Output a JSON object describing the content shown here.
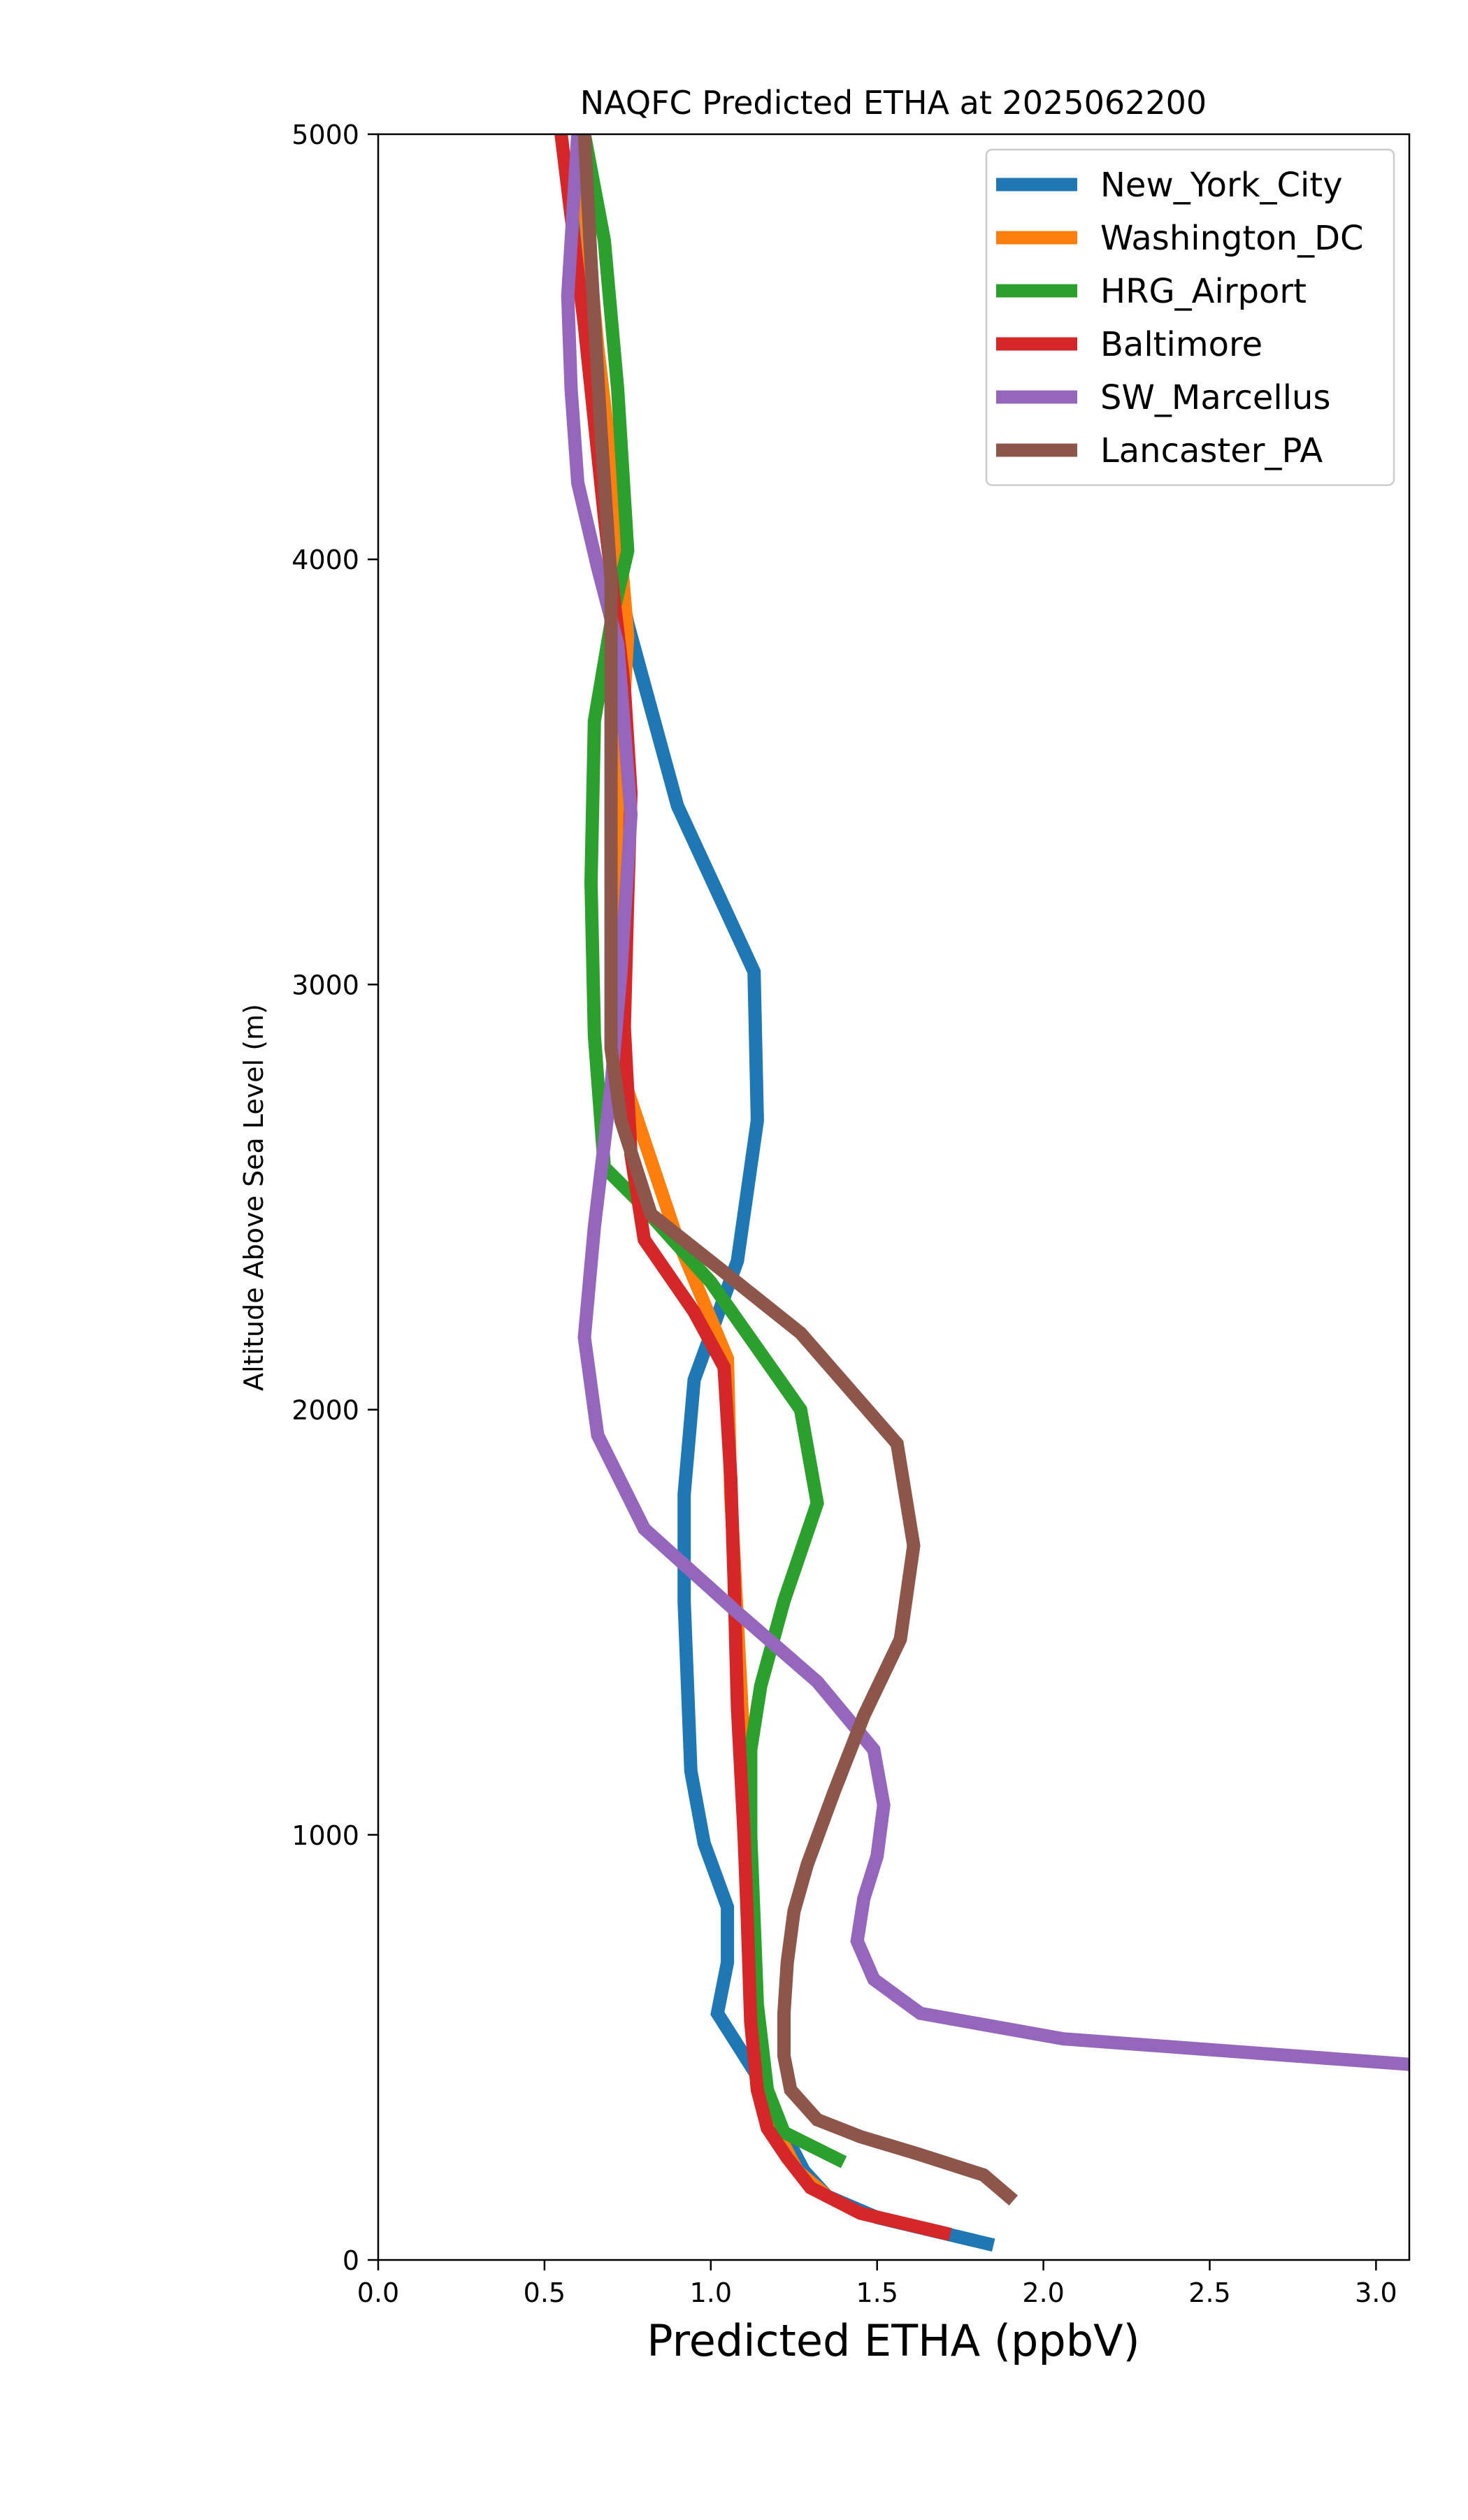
{
  "chart_data": {
    "type": "line",
    "title": "NAQFC Predicted ETHA at 2025062200",
    "xlabel": "Predicted ETHA (ppbV)",
    "ylabel": "Altitude Above Sea Level (m)",
    "xlim": [
      0,
      3.1
    ],
    "ylim": [
      0,
      5000
    ],
    "xticks": [
      "0.0",
      "0.5",
      "1.0",
      "1.5",
      "2.0",
      "2.5",
      "3.0"
    ],
    "xtick_values": [
      0,
      0.5,
      1.0,
      1.5,
      2.0,
      2.5,
      3.0
    ],
    "yticks": [
      "0",
      "1000",
      "2000",
      "3000",
      "4000",
      "5000"
    ],
    "ytick_values": [
      0,
      1000,
      2000,
      3000,
      4000,
      5000
    ],
    "grid": false,
    "legend_position": "top-right",
    "series": [
      {
        "name": "New_York_City",
        "color": "#1f77b4",
        "points": [
          [
            1.85,
            35
          ],
          [
            1.5,
            100
          ],
          [
            1.35,
            150
          ],
          [
            1.28,
            210
          ],
          [
            1.22,
            300
          ],
          [
            1.15,
            420
          ],
          [
            1.02,
            580
          ],
          [
            1.05,
            700
          ],
          [
            1.05,
            830
          ],
          [
            0.98,
            980
          ],
          [
            0.94,
            1150
          ],
          [
            0.93,
            1350
          ],
          [
            0.92,
            1550
          ],
          [
            0.92,
            1800
          ],
          [
            0.95,
            2070
          ],
          [
            1.08,
            2350
          ],
          [
            1.14,
            2680
          ],
          [
            1.13,
            3030
          ],
          [
            0.9,
            3420
          ],
          [
            0.75,
            3850
          ],
          [
            0.7,
            4050
          ],
          [
            0.65,
            4400
          ],
          [
            0.61,
            4800
          ],
          [
            0.6,
            5000
          ]
        ]
      },
      {
        "name": "Washington_DC",
        "color": "#ff7f0e",
        "points": [
          [
            1.35,
            150
          ],
          [
            1.26,
            210
          ],
          [
            1.2,
            300
          ],
          [
            1.16,
            420
          ],
          [
            1.13,
            580
          ],
          [
            1.12,
            800
          ],
          [
            1.11,
            1000
          ],
          [
            1.1,
            1200
          ],
          [
            1.08,
            1500
          ],
          [
            1.06,
            1800
          ],
          [
            1.05,
            2120
          ],
          [
            0.9,
            2400
          ],
          [
            0.75,
            2750
          ],
          [
            0.73,
            3000
          ],
          [
            0.73,
            3300
          ],
          [
            0.73,
            3550
          ],
          [
            0.75,
            3820
          ],
          [
            0.72,
            4100
          ],
          [
            0.66,
            4500
          ],
          [
            0.6,
            5000
          ]
        ]
      },
      {
        "name": "HRG_Airport",
        "color": "#2ca02c",
        "points": [
          [
            1.4,
            230
          ],
          [
            1.22,
            300
          ],
          [
            1.17,
            400
          ],
          [
            1.14,
            600
          ],
          [
            1.13,
            800
          ],
          [
            1.12,
            1000
          ],
          [
            1.12,
            1200
          ],
          [
            1.15,
            1350
          ],
          [
            1.22,
            1550
          ],
          [
            1.32,
            1780
          ],
          [
            1.27,
            2000
          ],
          [
            1.0,
            2300
          ],
          [
            0.77,
            2500
          ],
          [
            0.68,
            2570
          ],
          [
            0.65,
            2880
          ],
          [
            0.64,
            3240
          ],
          [
            0.65,
            3620
          ],
          [
            0.7,
            3850
          ],
          [
            0.75,
            4020
          ],
          [
            0.72,
            4400
          ],
          [
            0.68,
            4750
          ],
          [
            0.62,
            5000
          ]
        ]
      },
      {
        "name": "Baltimore",
        "color": "#d62728",
        "points": [
          [
            1.72,
            60
          ],
          [
            1.45,
            110
          ],
          [
            1.3,
            170
          ],
          [
            1.23,
            240
          ],
          [
            1.17,
            310
          ],
          [
            1.14,
            400
          ],
          [
            1.12,
            560
          ],
          [
            1.11,
            800
          ],
          [
            1.1,
            1000
          ],
          [
            1.08,
            1300
          ],
          [
            1.07,
            1600
          ],
          [
            1.06,
            1840
          ],
          [
            1.04,
            2100
          ],
          [
            0.95,
            2230
          ],
          [
            0.8,
            2400
          ],
          [
            0.76,
            2600
          ],
          [
            0.74,
            2900
          ],
          [
            0.75,
            3200
          ],
          [
            0.76,
            3450
          ],
          [
            0.74,
            3700
          ],
          [
            0.68,
            4100
          ],
          [
            0.62,
            4550
          ],
          [
            0.55,
            5000
          ]
        ]
      },
      {
        "name": "SW_Marcellus",
        "color": "#9467bd",
        "points": [
          [
            3.1,
            460
          ],
          [
            2.06,
            520
          ],
          [
            1.63,
            580
          ],
          [
            1.49,
            660
          ],
          [
            1.44,
            750
          ],
          [
            1.46,
            850
          ],
          [
            1.5,
            950
          ],
          [
            1.52,
            1070
          ],
          [
            1.49,
            1200
          ],
          [
            1.32,
            1360
          ],
          [
            1.07,
            1530
          ],
          [
            0.8,
            1720
          ],
          [
            0.66,
            1940
          ],
          [
            0.62,
            2170
          ],
          [
            0.65,
            2430
          ],
          [
            0.7,
            2760
          ],
          [
            0.73,
            3030
          ],
          [
            0.76,
            3400
          ],
          [
            0.72,
            3800
          ],
          [
            0.66,
            3980
          ],
          [
            0.6,
            4180
          ],
          [
            0.58,
            4400
          ],
          [
            0.57,
            4620
          ],
          [
            0.6,
            5000
          ]
        ]
      },
      {
        "name": "Lancaster_PA",
        "color": "#8c564b",
        "points": [
          [
            1.91,
            140
          ],
          [
            1.82,
            200
          ],
          [
            1.62,
            250
          ],
          [
            1.45,
            290
          ],
          [
            1.32,
            330
          ],
          [
            1.24,
            400
          ],
          [
            1.22,
            480
          ],
          [
            1.22,
            580
          ],
          [
            1.23,
            700
          ],
          [
            1.25,
            820
          ],
          [
            1.29,
            930
          ],
          [
            1.37,
            1100
          ],
          [
            1.46,
            1280
          ],
          [
            1.57,
            1460
          ],
          [
            1.61,
            1680
          ],
          [
            1.56,
            1920
          ],
          [
            1.27,
            2180
          ],
          [
            1.03,
            2330
          ],
          [
            0.82,
            2460
          ],
          [
            0.73,
            2680
          ],
          [
            0.7,
            2850
          ],
          [
            0.7,
            3100
          ],
          [
            0.7,
            3400
          ],
          [
            0.7,
            3700
          ],
          [
            0.7,
            3950
          ],
          [
            0.67,
            4300
          ],
          [
            0.64,
            4700
          ],
          [
            0.62,
            5000
          ]
        ]
      }
    ]
  }
}
